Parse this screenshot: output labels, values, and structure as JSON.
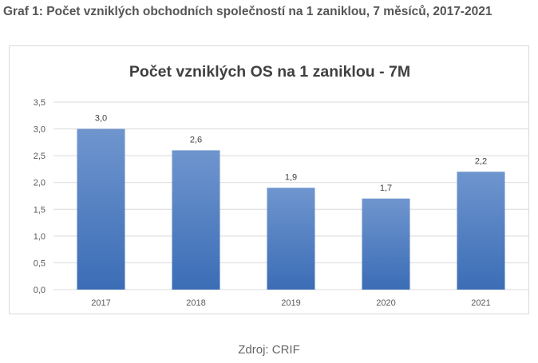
{
  "heading": "Graf 1: Počet vzniklých obchodních společností na 1 zaniklou, 7 měsíců, 2017-2021",
  "source": "Zdroj: CRIF",
  "chart_data": {
    "type": "bar",
    "title": "Počet vzniklých OS na 1 zaniklou - 7M",
    "categories": [
      "2017",
      "2018",
      "2019",
      "2020",
      "2021"
    ],
    "values": [
      3.0,
      2.6,
      1.9,
      1.7,
      2.2
    ],
    "value_labels": [
      "3,0",
      "2,6",
      "1,9",
      "1,7",
      "2,2"
    ],
    "xlabel": "",
    "ylabel": "",
    "ylim": [
      0,
      3.5
    ],
    "y_ticks": [
      0,
      0.5,
      1.0,
      1.5,
      2.0,
      2.5,
      3.0,
      3.5
    ],
    "y_tick_labels": [
      "0,0",
      "0,5",
      "1,0",
      "1,5",
      "2,0",
      "2,5",
      "3,0",
      "3,5"
    ],
    "grid": true,
    "legend": "none",
    "bar_color_top": "#6f95ce",
    "bar_color_bottom": "#3b6db6",
    "grid_color": "#d9d9d9"
  }
}
